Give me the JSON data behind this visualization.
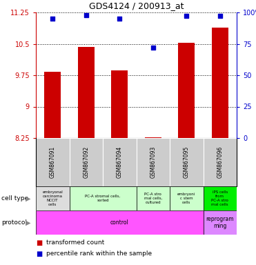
{
  "title": "GDS4124 / 200913_at",
  "samples": [
    "GSM867091",
    "GSM867092",
    "GSM867094",
    "GSM867093",
    "GSM867095",
    "GSM867096"
  ],
  "transformed_counts": [
    9.83,
    10.42,
    9.86,
    8.27,
    10.52,
    10.88
  ],
  "percentile_ranks": [
    95,
    98,
    95,
    72,
    97,
    97
  ],
  "ylim_left": [
    8.25,
    11.25
  ],
  "ylim_right": [
    0,
    100
  ],
  "yticks_left": [
    8.25,
    9.0,
    9.75,
    10.5,
    11.25
  ],
  "yticks_right": [
    0,
    25,
    50,
    75,
    100
  ],
  "ytick_labels_left": [
    "8.25",
    "9",
    "9.75",
    "10.5",
    "11.25"
  ],
  "ytick_labels_right": [
    "0",
    "25",
    "50",
    "75",
    "100%"
  ],
  "bar_color": "#cc0000",
  "dot_color": "#0000cc",
  "grid_color": "#000000",
  "cell_types": [
    {
      "label": "embryonal\ncarcinoma\nNCCIT\ncells",
      "span": [
        0,
        1
      ],
      "color": "#dddddd"
    },
    {
      "label": "PC-A stromal cells,\nsorted",
      "span": [
        1,
        3
      ],
      "color": "#ccffcc"
    },
    {
      "label": "PC-A stro\nmal cells,\ncultured",
      "span": [
        3,
        4
      ],
      "color": "#ccffcc"
    },
    {
      "label": "embryoni\nc stem\ncells",
      "span": [
        4,
        5
      ],
      "color": "#ccffcc"
    },
    {
      "label": "iPS cells\nfrom\nPC-A stro\nmal cells",
      "span": [
        5,
        6
      ],
      "color": "#00ee00"
    }
  ],
  "protocols": [
    {
      "label": "control",
      "span": [
        0,
        5
      ],
      "color": "#ff55ff"
    },
    {
      "label": "reprogram\nming",
      "span": [
        5,
        6
      ],
      "color": "#dd88ff"
    }
  ],
  "sample_bg_color": "#cccccc",
  "left_axis_color": "#cc0000",
  "right_axis_color": "#0000cc",
  "bar_width": 0.5
}
